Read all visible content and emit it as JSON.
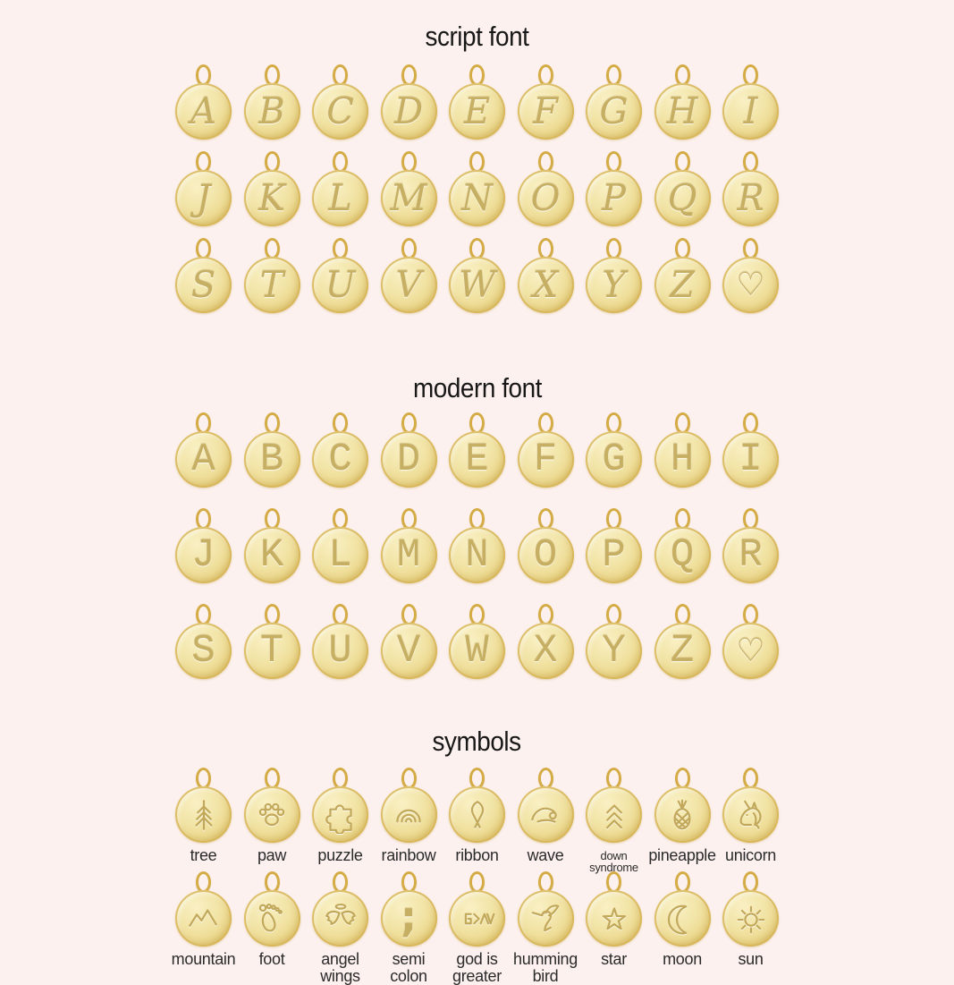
{
  "page": {
    "background_color": "#fcf1ee",
    "title_color": "#181818",
    "label_color": "#2b2b2b",
    "gold_disc_light": "#f9f0c4",
    "gold_disc_dark": "#e3ca78",
    "gold_engraving": "#c6ae62",
    "gold_ring": "#d4ab44"
  },
  "sections": [
    {
      "id": "script-font",
      "title": "script font",
      "style": "script",
      "rows": [
        [
          "A",
          "B",
          "C",
          "D",
          "E",
          "F",
          "G",
          "H",
          "I"
        ],
        [
          "J",
          "K",
          "L",
          "M",
          "N",
          "O",
          "P",
          "Q",
          "R"
        ],
        [
          "S",
          "T",
          "U",
          "V",
          "W",
          "X",
          "Y",
          "Z",
          "♡"
        ]
      ]
    },
    {
      "id": "modern-font",
      "title": "modern font",
      "style": "modern",
      "rows": [
        [
          "A",
          "B",
          "C",
          "D",
          "E",
          "F",
          "G",
          "H",
          "I"
        ],
        [
          "J",
          "K",
          "L",
          "M",
          "N",
          "O",
          "P",
          "Q",
          "R"
        ],
        [
          "S",
          "T",
          "U",
          "V",
          "W",
          "X",
          "Y",
          "Z",
          "♡"
        ]
      ]
    },
    {
      "id": "symbols",
      "title": "symbols",
      "style": "symbols",
      "rows": [
        [
          {
            "icon": "tree-icon",
            "label": "tree"
          },
          {
            "icon": "paw-icon",
            "label": "paw"
          },
          {
            "icon": "puzzle-icon",
            "label": "puzzle"
          },
          {
            "icon": "rainbow-icon",
            "label": "rainbow"
          },
          {
            "icon": "ribbon-icon",
            "label": "ribbon"
          },
          {
            "icon": "wave-icon",
            "label": "wave"
          },
          {
            "icon": "down-syndrome-icon",
            "label": "down\nsyndrome",
            "small": true
          },
          {
            "icon": "pineapple-icon",
            "label": "pineapple"
          },
          {
            "icon": "unicorn-icon",
            "label": "unicorn"
          }
        ],
        [
          {
            "icon": "mountain-icon",
            "label": "mountain"
          },
          {
            "icon": "foot-icon",
            "label": "foot"
          },
          {
            "icon": "angel-wings-icon",
            "label": "angel\nwings"
          },
          {
            "icon": "semicolon-icon",
            "label": "semi\ncolon"
          },
          {
            "icon": "god-is-greater-icon",
            "label": "god is\ngreater"
          },
          {
            "icon": "hummingbird-icon",
            "label": "humming\nbird"
          },
          {
            "icon": "star-icon",
            "label": "star"
          },
          {
            "icon": "moon-icon",
            "label": "moon"
          },
          {
            "icon": "sun-icon",
            "label": "sun"
          }
        ]
      ]
    }
  ]
}
